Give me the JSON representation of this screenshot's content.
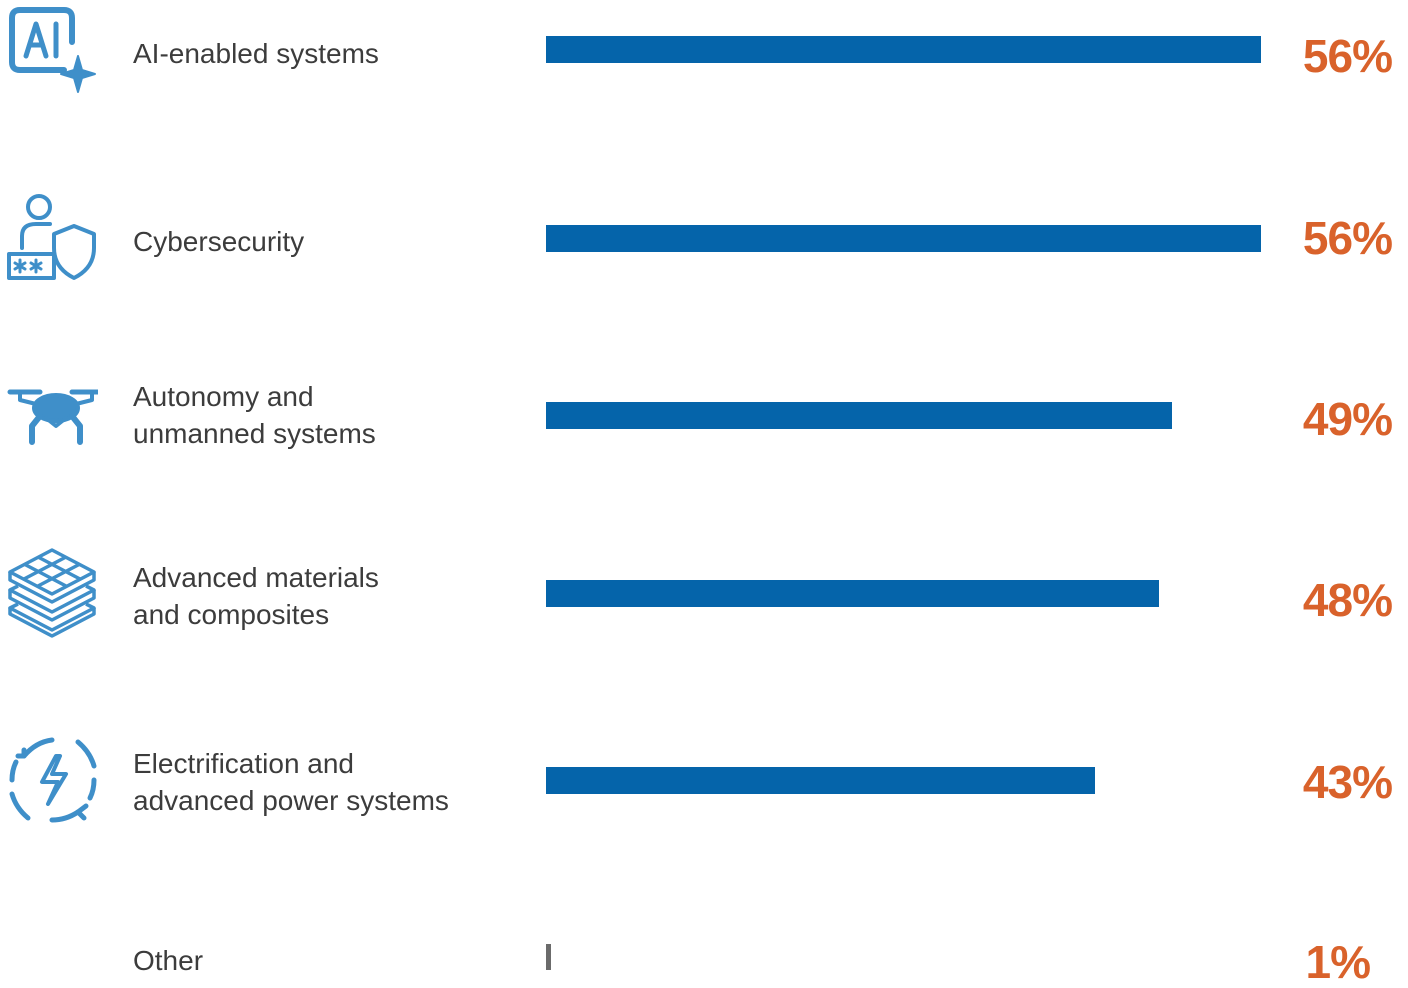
{
  "colors": {
    "bar": "#0564aa",
    "other_bar": "#6b6b6b",
    "percent": "#d9622b",
    "icon": "#3f8fc9",
    "label": "#3c3c3c"
  },
  "chart_data": {
    "type": "bar",
    "orientation": "horizontal",
    "categories": [
      "AI-enabled systems",
      "Cybersecurity",
      "Autonomy and\nunmanned systems",
      "Advanced materials\nand composites",
      "Electrification and\nadvanced power systems",
      "Other"
    ],
    "values": [
      56,
      56,
      49,
      48,
      43,
      1
    ],
    "value_labels": [
      "56%",
      "56%",
      "49%",
      "48%",
      "43%",
      "1%"
    ],
    "icons": [
      "ai-sparkle-icon",
      "user-shield-password-icon",
      "drone-icon",
      "layered-grid-materials-icon",
      "lightning-cycle-icon",
      ""
    ],
    "xlim": [
      0,
      56
    ],
    "unit": "%",
    "grid": false,
    "legend": "none"
  }
}
